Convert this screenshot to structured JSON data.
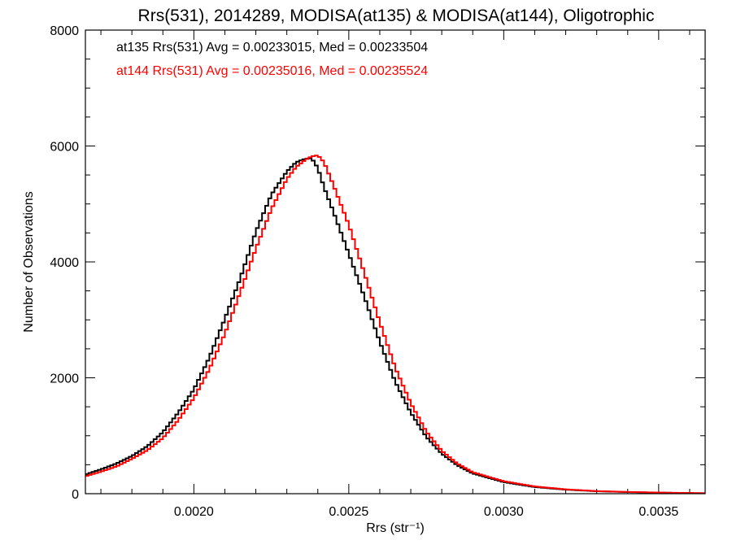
{
  "chart_data": {
    "type": "line",
    "title": "Rrs(531), 2014289, MODISA(at135) & MODISA(at144), Oligotrophic",
    "xlabel": "Rrs (str⁻¹)",
    "ylabel": "Number of Observations",
    "xlim": [
      0.00165,
      0.00365
    ],
    "ylim": [
      0,
      8000
    ],
    "x_ticks": [
      0.002,
      0.0025,
      0.003,
      0.0035
    ],
    "x_tick_labels": [
      "0.0020",
      "0.0025",
      "0.0030",
      "0.0035"
    ],
    "y_ticks": [
      0,
      2000,
      4000,
      6000,
      8000
    ],
    "y_tick_labels": [
      "0",
      "2000",
      "4000",
      "6000",
      "8000"
    ],
    "legend_placement": "top-left",
    "grid": false,
    "series": [
      {
        "name": "at135 Rrs(531) Avg = 0.00233015, Med = 0.00233504",
        "color": "#000000",
        "x": [
          0.00165,
          0.0017,
          0.00175,
          0.0018,
          0.00185,
          0.0019,
          0.00195,
          0.002,
          0.00205,
          0.0021,
          0.00215,
          0.0022,
          0.00225,
          0.0023,
          0.00233,
          0.00236,
          0.00238,
          0.0024,
          0.00242,
          0.00245,
          0.0025,
          0.00255,
          0.0026,
          0.00265,
          0.0027,
          0.00275,
          0.0028,
          0.00285,
          0.0029,
          0.003,
          0.0031,
          0.0032,
          0.0033,
          0.0034,
          0.0035,
          0.0036,
          0.00365
        ],
        "y": [
          330,
          420,
          520,
          650,
          820,
          1060,
          1400,
          1800,
          2350,
          3020,
          3720,
          4520,
          5160,
          5560,
          5720,
          5780,
          5790,
          5620,
          5290,
          4870,
          4140,
          3400,
          2620,
          1930,
          1400,
          980,
          690,
          490,
          350,
          200,
          115,
          70,
          42,
          28,
          18,
          10,
          8
        ]
      },
      {
        "name": "at144 Rrs(531) Avg = 0.00235016, Med = 0.00235524",
        "color": "#ff0000",
        "x": [
          0.00165,
          0.0017,
          0.00175,
          0.0018,
          0.00185,
          0.0019,
          0.00195,
          0.002,
          0.00205,
          0.0021,
          0.00215,
          0.0022,
          0.00225,
          0.0023,
          0.00233,
          0.00236,
          0.00238,
          0.0024,
          0.00242,
          0.00245,
          0.0025,
          0.00255,
          0.0026,
          0.00265,
          0.0027,
          0.00275,
          0.0028,
          0.00285,
          0.0029,
          0.003,
          0.0031,
          0.0032,
          0.0033,
          0.0034,
          0.0035,
          0.0036,
          0.00365
        ],
        "y": [
          300,
          380,
          470,
          600,
          750,
          960,
          1270,
          1650,
          2150,
          2760,
          3480,
          4230,
          4910,
          5430,
          5640,
          5760,
          5820,
          5840,
          5720,
          5330,
          4640,
          3810,
          2960,
          2170,
          1560,
          1070,
          740,
          520,
          370,
          215,
          125,
          75,
          45,
          30,
          20,
          12,
          8
        ]
      }
    ]
  }
}
